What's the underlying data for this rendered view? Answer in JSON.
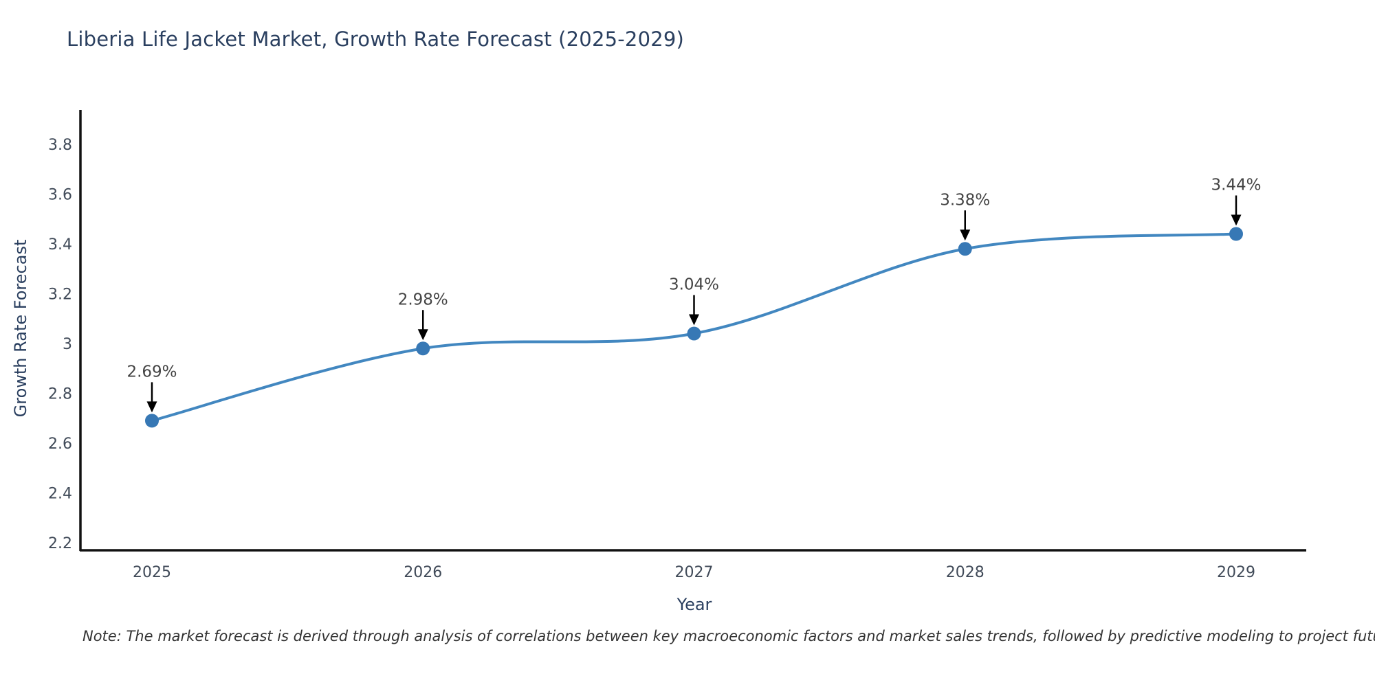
{
  "figure": {
    "title": "Liberia Life Jacket Market, Growth Rate Forecast (2025-2029)",
    "note": "Note: The market forecast is derived through analysis of correlations between key macroeconomic factors and market sales trends, followed by predictive modeling to project future sales"
  },
  "chart_data": {
    "type": "line",
    "title": "Liberia Life Jacket Market, Growth Rate Forecast (2025-2029)",
    "x": [
      "2025",
      "2026",
      "2027",
      "2028",
      "2029"
    ],
    "series": [
      {
        "name": "Growth Rate Forecast",
        "values": [
          2.69,
          2.98,
          3.04,
          3.38,
          3.44
        ]
      }
    ],
    "point_labels": [
      "2.69%",
      "2.98%",
      "3.04%",
      "3.38%",
      "3.44%"
    ],
    "xlabel": "Year",
    "ylabel": "Growth Rate Forecast",
    "ytick_values": [
      2.2,
      2.4,
      2.6,
      2.8,
      3,
      3.2,
      3.4,
      3.6,
      3.8
    ],
    "ytick_labels": [
      "2.2",
      "2.4",
      "2.6",
      "2.8",
      "3",
      "3.2",
      "3.4",
      "3.6",
      "3.8"
    ],
    "ylim": [
      2.2,
      3.9
    ],
    "line_shape": "spline",
    "grid": false,
    "legend": "none",
    "colors": {
      "line": "#4287c0",
      "marker": "#3778b5",
      "axis": "#111111",
      "title_text": "#2a3f5f",
      "tick_text": "#404a58",
      "annotation_text": "#444444",
      "arrow": "#000000",
      "background": "#ffffff"
    }
  }
}
